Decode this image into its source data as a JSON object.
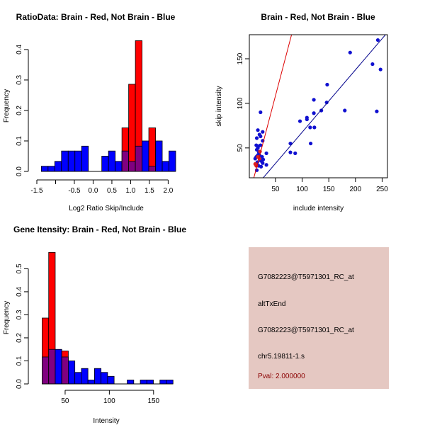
{
  "colors": {
    "red": "#ff0000",
    "blue": "#0000ff",
    "overlap": "#800080",
    "redline": "#dd0000",
    "blueline": "#00008b",
    "panel": "#e5c8c2",
    "pval": "#8b0000"
  },
  "chart_data": [
    {
      "type": "bar",
      "title": "RatioData: Brain - Red, Not Brain - Blue",
      "xlabel": "Log2 Ratio Skip/Include",
      "ylabel": "Frequency",
      "bin_start": -1.38,
      "bin_width": 0.179,
      "xlim": [
        -1.5,
        2.2
      ],
      "ylim": [
        0,
        0.43
      ],
      "xticks": [
        -1.5,
        -1.0,
        -0.5,
        0.0,
        0.5,
        1.0,
        1.5,
        2.0
      ],
      "xtick_labels": [
        "-1.5",
        "",
        "-0.5",
        "0.0",
        "0.5",
        "1.0",
        "1.5",
        "2.0"
      ],
      "yticks": [
        0,
        0.1,
        0.2,
        0.3,
        0.4
      ],
      "ytick_labels": [
        "0.0",
        "0.1",
        "0.2",
        "0.3",
        "0.4"
      ],
      "series": [
        {
          "name": "Not Brain",
          "color": "blue",
          "values": [
            0.017,
            0.017,
            0.033,
            0.067,
            0.067,
            0.067,
            0.083,
            0,
            0,
            0.05,
            0.067,
            0.033,
            0.067,
            0.033,
            0.083,
            0.1,
            0.017,
            0.1,
            0.033,
            0.067
          ]
        },
        {
          "name": "Brain",
          "color": "red",
          "values": [
            0,
            0,
            0,
            0,
            0,
            0,
            0,
            0,
            0,
            0,
            0,
            0,
            0.143,
            0.286,
            0.429,
            0,
            0.143,
            0,
            0,
            0
          ]
        }
      ]
    },
    {
      "type": "scatter",
      "title": "Brain - Red, Not Brain - Blue",
      "xlabel": "include intensity",
      "ylabel": "skip intensity",
      "xlim": [
        1,
        260
      ],
      "ylim": [
        16.5,
        177
      ],
      "xticks": [
        50,
        100,
        150,
        200,
        250
      ],
      "yticks": [
        50,
        100,
        150
      ],
      "series": [
        {
          "name": "Not Brain",
          "color": "blue",
          "points": [
            [
              22,
              90
            ],
            [
              17,
              70
            ],
            [
              26,
              68
            ],
            [
              20,
              65
            ],
            [
              22,
              63
            ],
            [
              15,
              61
            ],
            [
              26,
              58
            ],
            [
              14,
              53
            ],
            [
              18,
              52
            ],
            [
              22,
              53
            ],
            [
              15,
              48
            ],
            [
              17,
              50
            ],
            [
              19,
              45
            ],
            [
              20,
              42
            ],
            [
              25,
              40
            ],
            [
              33,
              44
            ],
            [
              24,
              35
            ],
            [
              27,
              37
            ],
            [
              18,
              30
            ],
            [
              33,
              31
            ],
            [
              15,
              25
            ],
            [
              23,
              29
            ],
            [
              12,
              38
            ],
            [
              20,
              38
            ],
            [
              16,
              34
            ],
            [
              22,
              36
            ],
            [
              26,
              33
            ],
            [
              17,
              42
            ],
            [
              14,
              40
            ],
            [
              78,
              55
            ],
            [
              78,
              45
            ],
            [
              87,
              44
            ],
            [
              96,
              80
            ],
            [
              109,
              84
            ],
            [
              109,
              82
            ],
            [
              115,
              73
            ],
            [
              116,
              55
            ],
            [
              122,
              104
            ],
            [
              122,
              89
            ],
            [
              123,
              73
            ],
            [
              136,
              92
            ],
            [
              146,
              101
            ],
            [
              147,
              121
            ],
            [
              180,
              92
            ],
            [
              190,
              157
            ],
            [
              232,
              144
            ],
            [
              240,
              91
            ],
            [
              242,
              171
            ],
            [
              247,
              138
            ]
          ]
        },
        {
          "name": "Brain",
          "color": "red",
          "points": [
            [
              12,
              32
            ],
            [
              14,
              30
            ],
            [
              20,
              38
            ],
            [
              21,
              46
            ],
            [
              17,
              40
            ]
          ]
        }
      ],
      "lines": [
        {
          "color": "redline",
          "intercept": -5,
          "slope": 2.27
        },
        {
          "color": "blueline",
          "intercept": -2.4,
          "slope": 0.7
        }
      ]
    },
    {
      "type": "bar",
      "title": "Gene Itensity: Brain - Red, Not Brain - Blue",
      "xlabel": "Intensity",
      "ylabel": "Frequency",
      "bin_start": 24,
      "bin_width": 7.4,
      "xlim": [
        18,
        175
      ],
      "ylim": [
        0,
        0.575
      ],
      "xticks": [
        50,
        100,
        150
      ],
      "xtick_labels": [
        "50",
        "100",
        "150"
      ],
      "yticks": [
        0,
        0.1,
        0.2,
        0.3,
        0.4,
        0.5
      ],
      "ytick_labels": [
        "0.0",
        "0.1",
        "0.2",
        "0.3",
        "0.4",
        "0.5"
      ],
      "series": [
        {
          "name": "Not Brain",
          "color": "blue",
          "values": [
            0.117,
            0.15,
            0.15,
            0.117,
            0.1,
            0.05,
            0.067,
            0.017,
            0.067,
            0.05,
            0.033,
            0,
            0,
            0.017,
            0,
            0.017,
            0.017,
            0,
            0.017,
            0.017
          ]
        },
        {
          "name": "Brain",
          "color": "red",
          "values": [
            0.286,
            0.571,
            0,
            0.143,
            0,
            0,
            0,
            0,
            0,
            0,
            0,
            0,
            0,
            0,
            0,
            0,
            0,
            0,
            0,
            0
          ]
        }
      ]
    }
  ],
  "info": {
    "line1": "G7082223@T5971301_RC_at",
    "line2": "altTxEnd",
    "line3": "G7082223@T5971301_RC_at",
    "line4": "chr5.19811-1.s",
    "pval": "Pval: 2.000000"
  }
}
